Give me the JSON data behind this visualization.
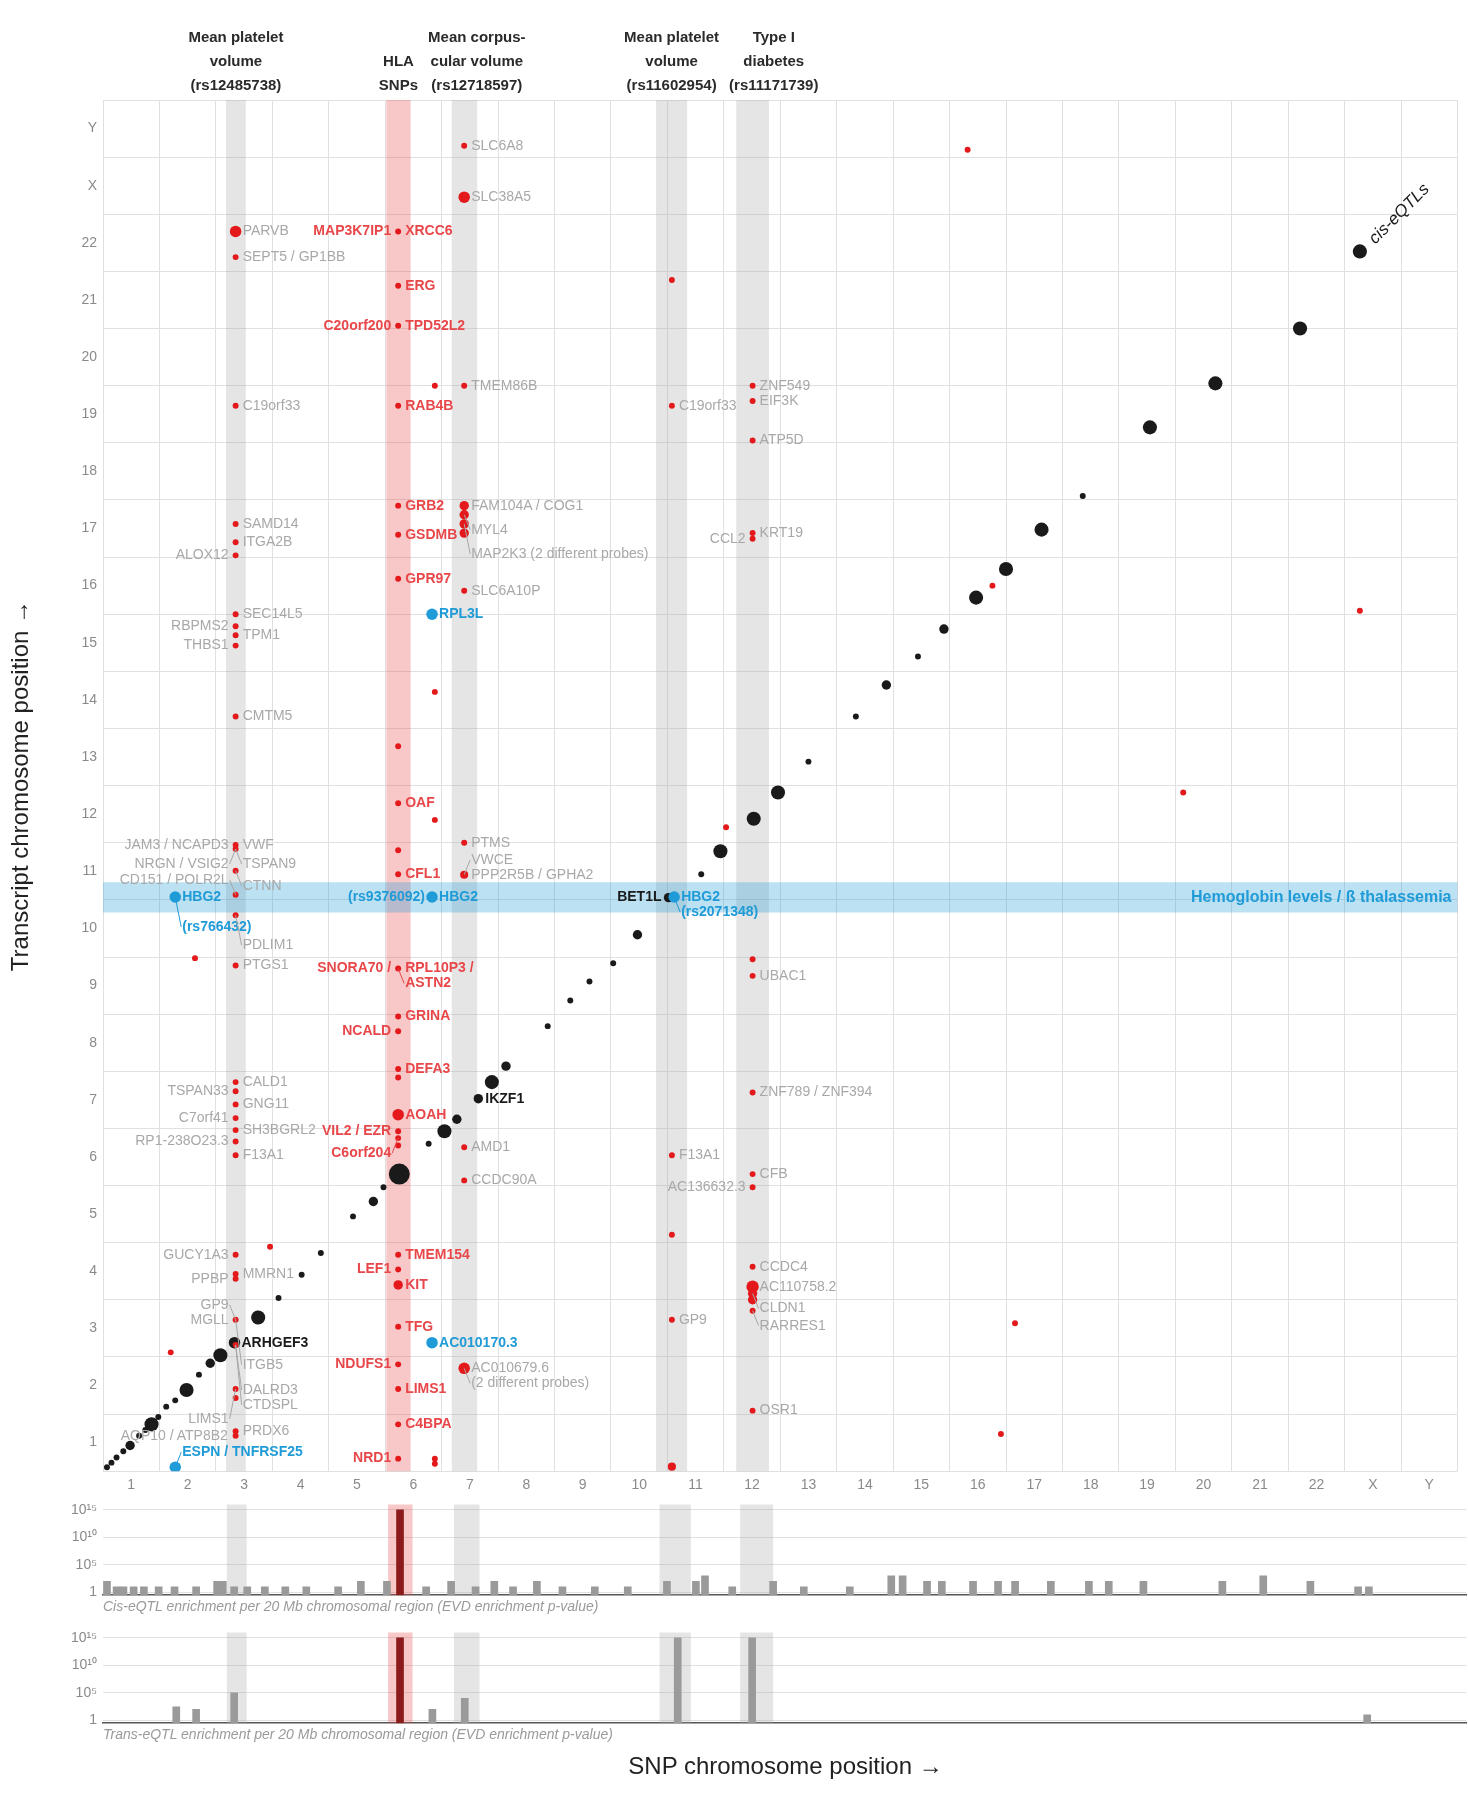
{
  "chart_data": [
    {
      "type": "bubble",
      "xlabel": "SNP chromosome position →",
      "ylabel": "Transcript chromosome position →",
      "xlim": [
        0.5,
        24.5
      ],
      "ylim": [
        0.5,
        24.5
      ],
      "grid": true,
      "xticks": [
        {
          "value": 0.5,
          "label": null
        },
        1,
        {
          "value": 1.5,
          "label": null
        },
        2,
        {
          "value": 2.5,
          "label": null
        },
        3,
        {
          "value": 3.5,
          "label": null
        },
        4,
        {
          "value": 4.5,
          "label": null
        },
        5,
        {
          "value": 5.5,
          "label": null
        },
        6,
        {
          "value": 6.5,
          "label": null
        },
        7,
        {
          "value": 7.5,
          "label": null
        },
        8,
        {
          "value": 8.5,
          "label": null
        },
        9,
        {
          "value": 9.5,
          "label": null
        },
        10,
        {
          "value": 10.5,
          "label": null
        },
        11,
        {
          "value": 11.5,
          "label": null
        },
        12,
        {
          "value": 12.5,
          "label": null
        },
        13,
        {
          "value": 13.5,
          "label": null
        },
        14,
        {
          "value": 14.5,
          "label": null
        },
        15,
        {
          "value": 15.5,
          "label": null
        },
        16,
        {
          "value": 16.5,
          "label": null
        },
        17,
        {
          "value": 17.5,
          "label": null
        },
        18,
        {
          "value": 18.5,
          "label": null
        },
        19,
        {
          "value": 19.5,
          "label": null
        },
        20,
        {
          "value": 20.5,
          "label": null
        },
        21,
        {
          "value": 21.5,
          "label": null
        },
        22,
        {
          "value": 22.5,
          "label": null
        },
        {
          "value": 23,
          "label": "X"
        },
        {
          "value": 23.5,
          "label": null
        },
        {
          "value": 24,
          "label": "Y"
        },
        {
          "value": 24.5,
          "label": null
        }
      ],
      "yticks": [
        {
          "value": 0.5,
          "label": null
        },
        1,
        {
          "value": 1.5,
          "label": null
        },
        2,
        {
          "value": 2.5,
          "label": null
        },
        3,
        {
          "value": 3.5,
          "label": null
        },
        4,
        {
          "value": 4.5,
          "label": null
        },
        5,
        {
          "value": 5.5,
          "label": null
        },
        6,
        {
          "value": 6.5,
          "label": null
        },
        7,
        {
          "value": 7.5,
          "label": null
        },
        8,
        {
          "value": 8.5,
          "label": null
        },
        9,
        {
          "value": 9.5,
          "label": null
        },
        10,
        {
          "value": 10.5,
          "label": null
        },
        11,
        {
          "value": 11.5,
          "label": null
        },
        12,
        {
          "value": 12.5,
          "label": null
        },
        13,
        {
          "value": 13.5,
          "label": null
        },
        14,
        {
          "value": 14.5,
          "label": null
        },
        15,
        {
          "value": 15.5,
          "label": null
        },
        16,
        {
          "value": 16.5,
          "label": null
        },
        17,
        {
          "value": 17.5,
          "label": null
        },
        18,
        {
          "value": 18.5,
          "label": null
        },
        19,
        {
          "value": 19.5,
          "label": null
        },
        20,
        {
          "value": 20.5,
          "label": null
        },
        21,
        {
          "value": 21.5,
          "label": null
        },
        22,
        {
          "value": 22.5,
          "label": null
        },
        {
          "value": 23,
          "label": "X"
        },
        {
          "value": 23.5,
          "label": null
        },
        {
          "value": 24,
          "label": "Y"
        },
        {
          "value": 24.5,
          "label": null
        }
      ],
      "bands": [
        {
          "axis": "x",
          "from": 2.68,
          "to": 3.03,
          "color": "#a8a8a8",
          "label": "Mean platelet\nvolume\n(rs12485738)"
        },
        {
          "axis": "x",
          "from": 5.52,
          "to": 5.95,
          "color": "#e8474a",
          "label": "HLA\nSNPs"
        },
        {
          "axis": "x",
          "from": 6.68,
          "to": 7.13,
          "color": "#a8a8a8",
          "label": "Mean corpus-\ncular volume\n(rs12718597)"
        },
        {
          "axis": "x",
          "from": 10.3,
          "to": 10.85,
          "color": "#a8a8a8",
          "label": "Mean platelet\nvolume\n(rs11602954)"
        },
        {
          "axis": "x",
          "from": 11.72,
          "to": 12.3,
          "color": "#a8a8a8",
          "label": "Type I\ndiabetes\n(rs11171739)"
        },
        {
          "axis": "y",
          "from": 10.28,
          "to": 10.81,
          "color": "#1f9bd7",
          "label": "Hemoglobin levels / ß thalassemia"
        }
      ],
      "series": [
        {
          "name": "cis-eQTLs",
          "color": "#1a1a1a",
          "x": [
            0.57,
            0.65,
            0.74,
            0.86,
            0.98,
            1.14,
            1.25,
            1.36,
            1.48,
            1.62,
            1.78,
            1.98,
            2.2,
            2.4,
            2.58,
            2.83,
            3.25,
            3.61,
            4.02,
            4.36,
            4.93,
            5.29,
            5.47,
            5.75,
            6.27,
            6.55,
            6.77,
            7.15,
            7.39,
            7.64,
            8.38,
            8.78,
            9.12,
            9.54,
            9.97,
            10.52,
            11.1,
            11.44,
            12.03,
            12.46,
            13,
            13.84,
            14.38,
            14.94,
            15.4,
            15.97,
            16.5,
            17.13,
            17.86,
            19.05,
            20.21,
            21.71,
            22.77
          ],
          "values": [
            0.57,
            0.65,
            0.74,
            0.85,
            0.95,
            1.12,
            1.22,
            1.32,
            1.45,
            1.63,
            1.74,
            1.92,
            2.19,
            2.39,
            2.53,
            2.75,
            3.19,
            3.53,
            3.94,
            4.32,
            4.96,
            5.22,
            5.47,
            5.7,
            6.23,
            6.45,
            6.66,
            7.02,
            7.31,
            7.59,
            8.29,
            8.74,
            9.07,
            9.39,
            9.89,
            10.54,
            10.95,
            11.35,
            11.92,
            12.38,
            12.92,
            13.71,
            14.26,
            14.76,
            15.24,
            15.79,
            16.29,
            16.98,
            17.57,
            18.77,
            19.54,
            20.5,
            21.85
          ],
          "sizes": [
            0.08,
            0.08,
            0.08,
            0.08,
            0.2,
            0.08,
            0.08,
            0.45,
            0.08,
            0.08,
            0.08,
            0.45,
            0.08,
            0.2,
            0.45,
            0.3,
            0.45,
            0.08,
            0.08,
            0.08,
            0.08,
            0.2,
            0.08,
            1,
            0.08,
            0.45,
            0.2,
            0.2,
            0.45,
            0.2,
            0.08,
            0.08,
            0.08,
            0.08,
            0.2,
            0.2,
            0.08,
            0.45,
            0.45,
            0.45,
            0.08,
            0.08,
            0.2,
            0.08,
            0.2,
            0.45,
            0.45,
            0.45,
            0.08,
            0.45,
            0.45,
            0.45,
            0.45
          ]
        },
        {
          "color": "#e3191c",
          "x": [
            2.85,
            2.85,
            2.85,
            2.85,
            2.85,
            2.85,
            2.85,
            2.85,
            2.85,
            2.85,
            2.85,
            2.85,
            2.85,
            2.85,
            2.85,
            2.85,
            2.85,
            2.85,
            2.85,
            2.85,
            2.85,
            2.85,
            2.85,
            2.85,
            2.85,
            2.85,
            2.85,
            2.85,
            2.85,
            2.85,
            2.85,
            2.85,
            2.85,
            5.73,
            5.73,
            5.73,
            5.73,
            5.73,
            5.73,
            5.73,
            5.73,
            5.73,
            5.73,
            5.73,
            5.73,
            5.73,
            5.73,
            5.73,
            5.73,
            5.73,
            5.73,
            5.73,
            5.73,
            5.73,
            5.73,
            5.73,
            5.73,
            5.73,
            5.73,
            5.73,
            5.73,
            6.9,
            6.9,
            6.9,
            6.9,
            6.9,
            6.9,
            6.9,
            6.9,
            6.9,
            6.9,
            6.9,
            6.9,
            6.9,
            6.38,
            6.38,
            6.38,
            6.38,
            6.38,
            10.58,
            10.58,
            10.58,
            10.58,
            10.58,
            10.58,
            12.01,
            12.01,
            12.01,
            12.01,
            12.01,
            12.01,
            12.01,
            12.01,
            12.01,
            12.01,
            12.01,
            12.01,
            12.01,
            12.01,
            12.01,
            12.01,
            2.13,
            1.7,
            3.46,
            15.82,
            22.77,
            19.64,
            16.66,
            16.41,
            11.54,
            16.26
          ],
          "values": [
            22.2,
            21.75,
            19.15,
            17.08,
            16.76,
            16.53,
            15.5,
            15.29,
            15.13,
            14.95,
            13.71,
            11.46,
            11.39,
            11.01,
            10.59,
            10.23,
            9.35,
            7.31,
            7.15,
            6.92,
            6.68,
            6.47,
            6.27,
            6.03,
            4.29,
            3.95,
            3.87,
            3.15,
            2.71,
            1.94,
            1.78,
            1.2,
            1.12,
            22.2,
            21.25,
            20.55,
            19.15,
            17.4,
            16.89,
            16.12,
            13.19,
            12.19,
            11.37,
            10.95,
            9.3,
            8.46,
            8.2,
            7.54,
            7.39,
            6.74,
            6.45,
            6.33,
            6.2,
            4.29,
            4.03,
            3.76,
            3.03,
            2.37,
            1.94,
            1.32,
            0.72,
            23.7,
            22.8,
            19.5,
            17.4,
            17.24,
            17.08,
            16.92,
            15.91,
            11.5,
            10.94,
            6.17,
            5.59,
            2.3,
            19.5,
            14.14,
            11.9,
            0.72,
            0.63,
            21.35,
            19.15,
            6.03,
            4.64,
            3.15,
            0.58,
            19.5,
            19.23,
            18.54,
            16.92,
            16.82,
            9.46,
            9.17,
            7.13,
            5.7,
            5.47,
            4.08,
            3.73,
            3.61,
            3.5,
            3.31,
            1.56,
            9.48,
            2.58,
            4.43,
            23.63,
            15.56,
            12.38,
            3.09,
            1.15,
            11.77,
            16
          ],
          "sizes": [
            0.3,
            0.08,
            0.08,
            0.08,
            0.08,
            0.08,
            0.08,
            0.08,
            0.08,
            0.08,
            0.08,
            0.08,
            0.08,
            0.08,
            0.08,
            0.08,
            0.08,
            0.08,
            0.08,
            0.08,
            0.08,
            0.08,
            0.08,
            0.08,
            0.08,
            0.08,
            0.08,
            0.08,
            0.08,
            0.08,
            0.08,
            0.08,
            0.08,
            0.08,
            0.08,
            0.08,
            0.08,
            0.08,
            0.08,
            0.08,
            0.08,
            0.08,
            0.08,
            0.08,
            0.08,
            0.08,
            0.08,
            0.08,
            0.08,
            0.3,
            0.08,
            0.08,
            0.08,
            0.08,
            0.08,
            0.2,
            0.08,
            0.08,
            0.08,
            0.08,
            0.08,
            0.08,
            0.3,
            0.08,
            0.2,
            0.2,
            0.2,
            0.2,
            0.08,
            0.08,
            0.15,
            0.08,
            0.08,
            0.3,
            0.08,
            0.08,
            0.08,
            0.08,
            0.08,
            0.08,
            0.08,
            0.08,
            0.08,
            0.08,
            0.15,
            0.08,
            0.08,
            0.08,
            0.08,
            0.08,
            0.08,
            0.08,
            0.08,
            0.08,
            0.08,
            0.08,
            0.35,
            0.2,
            0.2,
            0.08,
            0.08,
            0.08,
            0.08,
            0.08,
            0.08,
            0.08,
            0.08,
            0.08,
            0.08,
            0.08,
            0.08
          ]
        },
        {
          "color": "#1f9bd7",
          "x": [
            1.78,
            6.33,
            10.62,
            6.33,
            6.33,
            1.78
          ],
          "values": [
            10.55,
            10.55,
            10.55,
            15.5,
            2.75,
            0.57
          ],
          "sizes": [
            0.3,
            0.3,
            0.3,
            0.3,
            0.3,
            0.3
          ]
        }
      ],
      "annotations": [
        {
          "text": "HBG2",
          "x": 1.78,
          "y": 10.55
        },
        {
          "text": "(rs766432)",
          "x": 1.78,
          "y": 10.55
        },
        {
          "text": "RPL3L",
          "x": 6.33,
          "y": 15.5
        },
        {
          "text": "HBG2",
          "x": 6.33,
          "y": 10.55
        },
        {
          "text": "(rs9376092)",
          "x": 6.33,
          "y": 10.55
        },
        {
          "text": "HBG2",
          "x": 10.62,
          "y": 10.55
        },
        {
          "text": "(rs2071348)",
          "x": 10.62,
          "y": 10.55
        },
        {
          "text": "AC010170.3",
          "x": 6.33,
          "y": 2.75
        },
        {
          "text": "ESPN / TNFRSF25",
          "x": 1.78,
          "y": 0.57
        },
        {
          "text": "BET1L",
          "x": 10.52,
          "y": 10.54
        },
        {
          "text": "IKZF1",
          "x": 7.15,
          "y": 7.02
        },
        {
          "text": "ARHGEF3",
          "x": 2.83,
          "y": 2.75
        },
        {
          "text": "XRCC6",
          "x": 5.73,
          "y": 22.2
        },
        {
          "text": "MAP3K7IP1",
          "x": 5.73,
          "y": 22.2
        },
        {
          "text": "ERG",
          "x": 5.73,
          "y": 21.25
        },
        {
          "text": "TPD52L2",
          "x": 5.73,
          "y": 20.55
        },
        {
          "text": "C20orf200",
          "x": 5.73,
          "y": 20.55
        },
        {
          "text": "RAB4B",
          "x": 5.73,
          "y": 19.15
        },
        {
          "text": "GRB2",
          "x": 5.73,
          "y": 17.4
        },
        {
          "text": "GSDMB",
          "x": 5.73,
          "y": 16.89
        },
        {
          "text": "GPR97",
          "x": 5.73,
          "y": 16.12
        },
        {
          "text": "OAF",
          "x": 5.73,
          "y": 12.19
        },
        {
          "text": "CFL1",
          "x": 5.73,
          "y": 10.95
        },
        {
          "text": "RPL10P3 /",
          "x": 5.73,
          "y": 9.3
        },
        {
          "text": "SNORA70 /",
          "x": 5.73,
          "y": 9.3
        },
        {
          "text": "ASTN2",
          "x": 5.73,
          "y": 9.3
        },
        {
          "text": "GRINA",
          "x": 5.73,
          "y": 8.46
        },
        {
          "text": "NCALD",
          "x": 5.73,
          "y": 8.2
        },
        {
          "text": "DEFA3",
          "x": 5.73,
          "y": 7.54
        },
        {
          "text": "AOAH",
          "x": 5.73,
          "y": 6.74
        },
        {
          "text": "VIL2 / EZR",
          "x": 5.73,
          "y": 6.45
        },
        {
          "text": "C6orf204",
          "x": 5.73,
          "y": 6.33
        },
        {
          "text": "TMEM154",
          "x": 5.73,
          "y": 4.29
        },
        {
          "text": "LEF1",
          "x": 5.73,
          "y": 4.03
        },
        {
          "text": "KIT",
          "x": 5.73,
          "y": 3.76
        },
        {
          "text": "TFG",
          "x": 5.73,
          "y": 3.03
        },
        {
          "text": "NDUFS1",
          "x": 5.73,
          "y": 2.37
        },
        {
          "text": "LIMS1",
          "x": 5.73,
          "y": 1.94
        },
        {
          "text": "C4BPA",
          "x": 5.73,
          "y": 1.32
        },
        {
          "text": "NRD1",
          "x": 5.73,
          "y": 0.72
        },
        {
          "text": "PARVB",
          "x": 2.85,
          "y": 22.2
        },
        {
          "text": "SEPT5 / GP1BB",
          "x": 2.85,
          "y": 21.75
        },
        {
          "text": "C19orf33",
          "x": 2.85,
          "y": 19.15
        },
        {
          "text": "SAMD14",
          "x": 2.85,
          "y": 17.08
        },
        {
          "text": "ITGA2B",
          "x": 2.85,
          "y": 16.76
        },
        {
          "text": "ALOX12",
          "x": 2.85,
          "y": 16.53
        },
        {
          "text": "SEC14L5",
          "x": 2.85,
          "y": 15.5
        },
        {
          "text": "RBPMS2",
          "x": 2.85,
          "y": 15.29
        },
        {
          "text": "TPM1",
          "x": 2.85,
          "y": 15.13
        },
        {
          "text": "THBS1",
          "x": 2.85,
          "y": 14.95
        },
        {
          "text": "CMTM5",
          "x": 2.85,
          "y": 13.71
        },
        {
          "text": "VWF",
          "x": 2.85,
          "y": 11.46
        },
        {
          "text": "JAM3 / NCAPD3",
          "x": 2.85,
          "y": 11.46
        },
        {
          "text": "TSPAN9",
          "x": 2.85,
          "y": 11.39
        },
        {
          "text": "NRGN / VSIG2",
          "x": 2.85,
          "y": 11.39
        },
        {
          "text": "CTNN",
          "x": 2.85,
          "y": 11.01
        },
        {
          "text": "CD151 / POLR2L",
          "x": 2.85,
          "y": 10.59
        },
        {
          "text": "PDLIM1",
          "x": 2.85,
          "y": 10.23
        },
        {
          "text": "PTGS1",
          "x": 2.85,
          "y": 9.35
        },
        {
          "text": "CALD1",
          "x": 2.85,
          "y": 7.31
        },
        {
          "text": "TSPAN33",
          "x": 2.85,
          "y": 7.15
        },
        {
          "text": "GNG11",
          "x": 2.85,
          "y": 6.92
        },
        {
          "text": "C7orf41",
          "x": 2.85,
          "y": 6.68
        },
        {
          "text": "SH3BGRL2",
          "x": 2.85,
          "y": 6.47
        },
        {
          "text": "RP1-238O23.3",
          "x": 2.85,
          "y": 6.27
        },
        {
          "text": "F13A1",
          "x": 2.85,
          "y": 6.03
        },
        {
          "text": "GUCY1A3",
          "x": 2.85,
          "y": 4.29
        },
        {
          "text": "MMRN1",
          "x": 2.85,
          "y": 3.95
        },
        {
          "text": "PPBP",
          "x": 2.85,
          "y": 3.87
        },
        {
          "text": "MGLL",
          "x": 2.85,
          "y": 3.15
        },
        {
          "text": "GP9",
          "x": 2.85,
          "y": 3.15
        },
        {
          "text": "ITGB5",
          "x": 2.85,
          "y": 3.15
        },
        {
          "text": "DALRD3",
          "x": 2.85,
          "y": 2.71
        },
        {
          "text": "CTDSPL",
          "x": 2.85,
          "y": 2.71
        },
        {
          "text": "LIMS1",
          "x": 2.85,
          "y": 1.94
        },
        {
          "text": "PRDX6",
          "x": 2.85,
          "y": 1.2
        },
        {
          "text": "AQP10 / ATP8B2",
          "x": 2.85,
          "y": 1.12
        },
        {
          "text": "SLC6A8",
          "x": 6.9,
          "y": 23.7
        },
        {
          "text": "SLC38A5",
          "x": 6.9,
          "y": 22.8
        },
        {
          "text": "TMEM86B",
          "x": 6.9,
          "y": 19.5
        },
        {
          "text": "FAM104A / COG1",
          "x": 6.9,
          "y": 17.4
        },
        {
          "text": "MYL4",
          "x": 6.9,
          "y": 17.24
        },
        {
          "text": "MAP2K3 (2 different probes)",
          "x": 6.9,
          "y": 17.08
        },
        {
          "text": "SLC6A10P",
          "x": 6.9,
          "y": 15.91
        },
        {
          "text": "PTMS",
          "x": 6.9,
          "y": 11.5
        },
        {
          "text": "PPP2R5B / GPHA2",
          "x": 6.9,
          "y": 10.94
        },
        {
          "text": "VWCE",
          "x": 6.9,
          "y": 10.94
        },
        {
          "text": "AMD1",
          "x": 6.9,
          "y": 6.17
        },
        {
          "text": "CCDC90A",
          "x": 6.9,
          "y": 5.59
        },
        {
          "text": "AC010679.6",
          "x": 6.9,
          "y": 2.3
        },
        {
          "text": "(2 different probes)",
          "x": 6.9,
          "y": 2.3
        },
        {
          "text": "C19orf33",
          "x": 10.58,
          "y": 19.15
        },
        {
          "text": "F13A1",
          "x": 10.58,
          "y": 6.03
        },
        {
          "text": "GP9",
          "x": 10.58,
          "y": 3.15
        },
        {
          "text": "ZNF549",
          "x": 12.01,
          "y": 19.5
        },
        {
          "text": "EIF3K",
          "x": 12.01,
          "y": 19.23
        },
        {
          "text": "ATP5D",
          "x": 12.01,
          "y": 18.54
        },
        {
          "text": "KRT19",
          "x": 12.01,
          "y": 16.92
        },
        {
          "text": "CCL2",
          "x": 12.01,
          "y": 16.82
        },
        {
          "text": "UBAC1",
          "x": 12.01,
          "y": 9.17
        },
        {
          "text": "ZNF789 / ZNF394",
          "x": 12.01,
          "y": 7.13
        },
        {
          "text": "CFB",
          "x": 12.01,
          "y": 5.7
        },
        {
          "text": "AC136632.3",
          "x": 12.01,
          "y": 5.47
        },
        {
          "text": "CCDC4",
          "x": 12.01,
          "y": 4.08
        },
        {
          "text": "AC110758.2",
          "x": 12.01,
          "y": 3.73
        },
        {
          "text": "CLDN1",
          "x": 12.01,
          "y": 3.61
        },
        {
          "text": "RARRES1",
          "x": 12.01,
          "y": 3.31
        },
        {
          "text": "OSR1",
          "x": 12.01,
          "y": 1.56
        }
      ]
    },
    {
      "type": "bar",
      "xlabel": "Cis-eQTL enrichment per 20 Mb chromosomal region (EVD enrichment p-value)",
      "xlim": [
        0.5,
        24.5
      ],
      "ylim": [
        0.3,
        1e+16
      ],
      "log": "y",
      "grid": "y",
      "tick_labels": "y",
      "yticks": [
        {
          "value": 1000000000000000.0,
          "label": "10¹⁵"
        },
        {
          "value": 10000000000.0,
          "label": "10¹⁰"
        },
        {
          "value": 100000.0,
          "label": "10⁵"
        },
        1
      ],
      "bands": [
        {
          "axis": "x",
          "from": 2.68,
          "to": 3.03,
          "color": "#a8a8a8"
        },
        {
          "axis": "x",
          "from": 5.52,
          "to": 5.95,
          "color": "#e8474a"
        },
        {
          "axis": "x",
          "from": 6.68,
          "to": 7.13,
          "color": "#a8a8a8"
        },
        {
          "axis": "x",
          "from": 10.3,
          "to": 10.85,
          "color": "#a8a8a8"
        },
        {
          "axis": "x",
          "from": 11.72,
          "to": 12.3,
          "color": "#a8a8a8"
        }
      ],
      "x": [
        0.57,
        0.74,
        0.86,
        1.04,
        1.22,
        1.48,
        1.76,
        2.14,
        2.51,
        2.61,
        2.81,
        3.04,
        3.35,
        3.71,
        4.08,
        4.64,
        5.04,
        5.5,
        5.73,
        6.19,
        6.63,
        7.06,
        7.39,
        7.72,
        8.14,
        8.59,
        9.16,
        9.74,
        10.43,
        10.94,
        11.1,
        11.58,
        12.3,
        12.84,
        13.65,
        14.38,
        14.58,
        15.01,
        15.27,
        15.82,
        16.26,
        16.56,
        17.19,
        17.86,
        18.21,
        18.82,
        20.21,
        20.93,
        21.76,
        22.6,
        22.79
      ],
      "values": [
        100,
        10,
        10,
        10,
        10,
        10,
        10,
        10,
        100,
        100,
        10,
        10,
        10,
        10,
        10,
        10,
        100,
        100,
        1000000000000000.0,
        10,
        100,
        10,
        100,
        10,
        100,
        10,
        10,
        10,
        100,
        100,
        1000,
        10,
        100,
        10,
        10,
        1000,
        1000,
        100,
        100,
        100,
        100,
        100,
        100,
        100,
        100,
        100,
        100,
        1000,
        100,
        10,
        10
      ],
      "colors": [
        "#9a9a9a",
        "#9a9a9a",
        "#9a9a9a",
        "#9a9a9a",
        "#9a9a9a",
        "#9a9a9a",
        "#9a9a9a",
        "#9a9a9a",
        "#9a9a9a",
        "#9a9a9a",
        "#9a9a9a",
        "#9a9a9a",
        "#9a9a9a",
        "#9a9a9a",
        "#9a9a9a",
        "#9a9a9a",
        "#9a9a9a",
        "#9a9a9a",
        "#8b1a1a",
        "#9a9a9a",
        "#9a9a9a",
        "#9a9a9a",
        "#9a9a9a",
        "#9a9a9a",
        "#9a9a9a",
        "#9a9a9a",
        "#9a9a9a",
        "#9a9a9a",
        "#9a9a9a",
        "#9a9a9a",
        "#9a9a9a",
        "#9a9a9a",
        "#9a9a9a",
        "#9a9a9a",
        "#9a9a9a",
        "#9a9a9a",
        "#9a9a9a",
        "#9a9a9a",
        "#9a9a9a",
        "#9a9a9a",
        "#9a9a9a",
        "#9a9a9a",
        "#9a9a9a",
        "#9a9a9a",
        "#9a9a9a",
        "#9a9a9a",
        "#9a9a9a",
        "#9a9a9a",
        "#9a9a9a",
        "#9a9a9a",
        "#9a9a9a"
      ]
    },
    {
      "type": "bar",
      "xlabel": "Trans-eQTL enrichment per 20 Mb chromosomal region (EVD enrichment p-value)",
      "xlim": [
        0.5,
        24.5
      ],
      "ylim": [
        0.3,
        1e+16
      ],
      "log": "y",
      "grid": "y",
      "tick_labels": "y",
      "yticks": [
        {
          "value": 1000000000000000.0,
          "label": "10¹⁵"
        },
        {
          "value": 10000000000.0,
          "label": "10¹⁰"
        },
        {
          "value": 100000.0,
          "label": "10⁵"
        },
        1
      ],
      "bands": [
        {
          "axis": "x",
          "from": 2.68,
          "to": 3.03,
          "color": "#a8a8a8"
        },
        {
          "axis": "x",
          "from": 5.52,
          "to": 5.95,
          "color": "#e8474a"
        },
        {
          "axis": "x",
          "from": 6.68,
          "to": 7.13,
          "color": "#a8a8a8"
        },
        {
          "axis": "x",
          "from": 10.3,
          "to": 10.85,
          "color": "#a8a8a8"
        },
        {
          "axis": "x",
          "from": 11.72,
          "to": 12.3,
          "color": "#a8a8a8"
        }
      ],
      "x": [
        1.79,
        2.14,
        2.81,
        5.73,
        6.3,
        6.87,
        10.62,
        11.93,
        22.76
      ],
      "values": [
        300,
        100,
        100000,
        1000000000000000.0,
        100,
        10000,
        1000000000000000.0,
        1000000000000000.0,
        10
      ],
      "colors": [
        "#9a9a9a",
        "#9a9a9a",
        "#9a9a9a",
        "#8b1a1a",
        "#9a9a9a",
        "#9a9a9a",
        "#9a9a9a",
        "#9a9a9a",
        "#9a9a9a"
      ]
    }
  ]
}
